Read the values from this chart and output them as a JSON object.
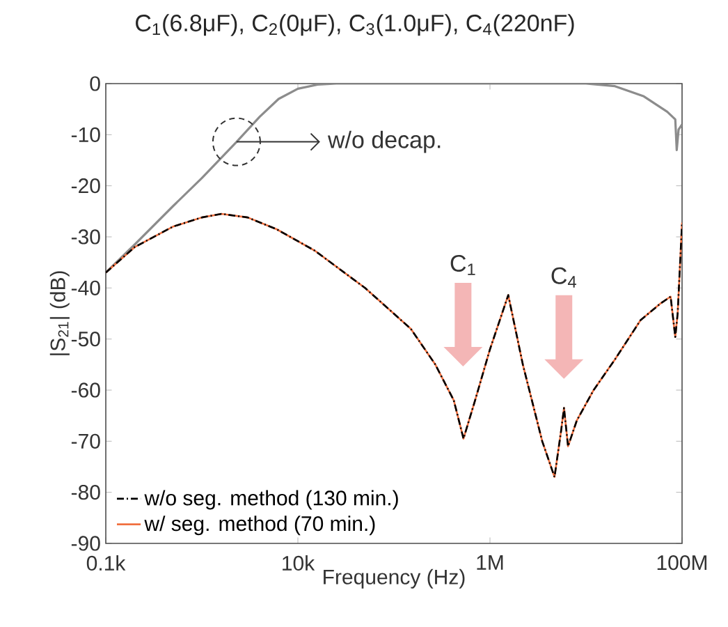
{
  "chart_data": {
    "type": "line",
    "title": "C$_{1}$(6.8μF), C$_{2}$(0μF), C$_{3}$(1.0μF), C$_{4}$(220nF)",
    "xlabel": "Frequency (Hz)",
    "ylabel": "|S$_{21}$| (dB)",
    "log": "x",
    "xlim": [
      100,
      100000000
    ],
    "ylim": [
      -90,
      0
    ],
    "xticks": [
      {
        "value": 100,
        "label": "0.1k"
      },
      {
        "value": 10000,
        "label": "10k"
      },
      {
        "value": 1000000,
        "label": "1M"
      },
      {
        "value": 100000000,
        "label": "100M"
      }
    ],
    "yticks": [
      -90,
      -80,
      -70,
      -60,
      -50,
      -40,
      -30,
      -20,
      -10,
      0
    ],
    "grid": false,
    "legend": "bottom left",
    "marker": "none",
    "annotations": [
      {
        "text": "w/o decap.",
        "x": 2300,
        "y": -11.4
      },
      "C$_{1}$",
      "C$_{4}$"
    ],
    "series": [
      {
        "color": "#8c8c8c",
        "line_style": "solid",
        "x": [
          100,
          200,
          500,
          1000,
          2300,
          4000,
          6300,
          10000,
          16000,
          25000,
          100000,
          1000000,
          10000000,
          20000000,
          40000000,
          70000000,
          85000000,
          88000000,
          92000000,
          100000000
        ],
        "values": [
          -37,
          -31.5,
          -24,
          -18.5,
          -11.4,
          -6.5,
          -3,
          -1,
          -0.2,
          0,
          0,
          0,
          0,
          -0.5,
          -2.5,
          -5.5,
          -7,
          -13,
          -9,
          -8
        ]
      },
      {
        "name": "w/o seg. method (130 min.)",
        "color": "#000000",
        "line_style": "dashed",
        "x": [
          100,
          200,
          500,
          1000,
          1600,
          3000,
          6000,
          15000,
          50000,
          150000,
          270000,
          420000,
          530000,
          700000,
          1000000,
          1550000,
          2200000,
          3500000,
          4700000,
          5500000,
          5900000,
          6500000,
          8000000,
          12000000,
          20000000,
          37000000,
          60000000,
          76000000,
          85000000,
          90000000,
          100000000
        ],
        "values": [
          -37,
          -32,
          -28,
          -26.2,
          -25.5,
          -26.2,
          -28.5,
          -32.7,
          -40,
          -48,
          -55,
          -62,
          -69.5,
          -62,
          -52,
          -41.4,
          -55,
          -70,
          -77,
          -68,
          -63.5,
          -71,
          -66,
          -60,
          -54,
          -46.3,
          -43,
          -41.7,
          -49.6,
          -45,
          -27.2
        ]
      },
      {
        "name": "w/ seg. method (70 min.)",
        "color": "#f07040",
        "line_style": "solid",
        "x": [
          100,
          200,
          500,
          1000,
          1600,
          3000,
          6000,
          15000,
          50000,
          150000,
          270000,
          420000,
          530000,
          700000,
          1000000,
          1550000,
          2200000,
          3500000,
          4700000,
          5500000,
          5900000,
          6500000,
          8000000,
          12000000,
          20000000,
          37000000,
          60000000,
          76000000,
          85000000,
          90000000,
          100000000
        ],
        "values": [
          -37,
          -32,
          -28,
          -26.2,
          -25.5,
          -26.2,
          -28.5,
          -32.7,
          -40,
          -48,
          -55,
          -62,
          -69.5,
          -62,
          -52,
          -41.4,
          -55,
          -70,
          -77,
          -68,
          -63.5,
          -71,
          -66,
          -60,
          -54,
          -46.3,
          -43,
          -41.7,
          -49.6,
          -45,
          -27.2
        ]
      }
    ]
  }
}
